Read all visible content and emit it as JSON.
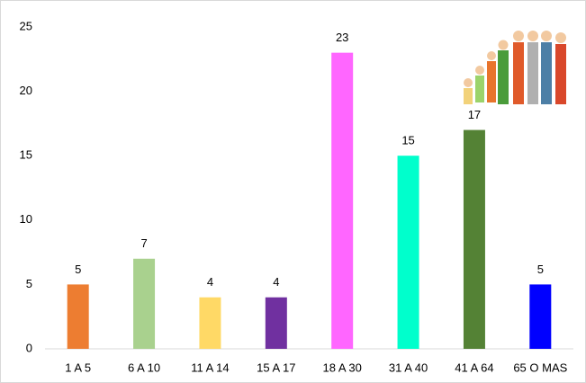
{
  "chart_data": {
    "type": "bar",
    "categories": [
      "1 A 5",
      "6 A 10",
      "11 A 14",
      "15 A 17",
      "18 A 30",
      "31 A 40",
      "41 A 64",
      "65 O MAS"
    ],
    "values": [
      5,
      7,
      4,
      4,
      23,
      15,
      17,
      5
    ],
    "colors": [
      "#ed7d31",
      "#a9d18e",
      "#ffd966",
      "#7030a0",
      "#ff66ff",
      "#00ffcc",
      "#548235",
      "#0000ff"
    ],
    "ylim": [
      0,
      25
    ],
    "yticks": [
      0,
      5,
      10,
      15,
      20,
      25
    ],
    "grid": false
  }
}
